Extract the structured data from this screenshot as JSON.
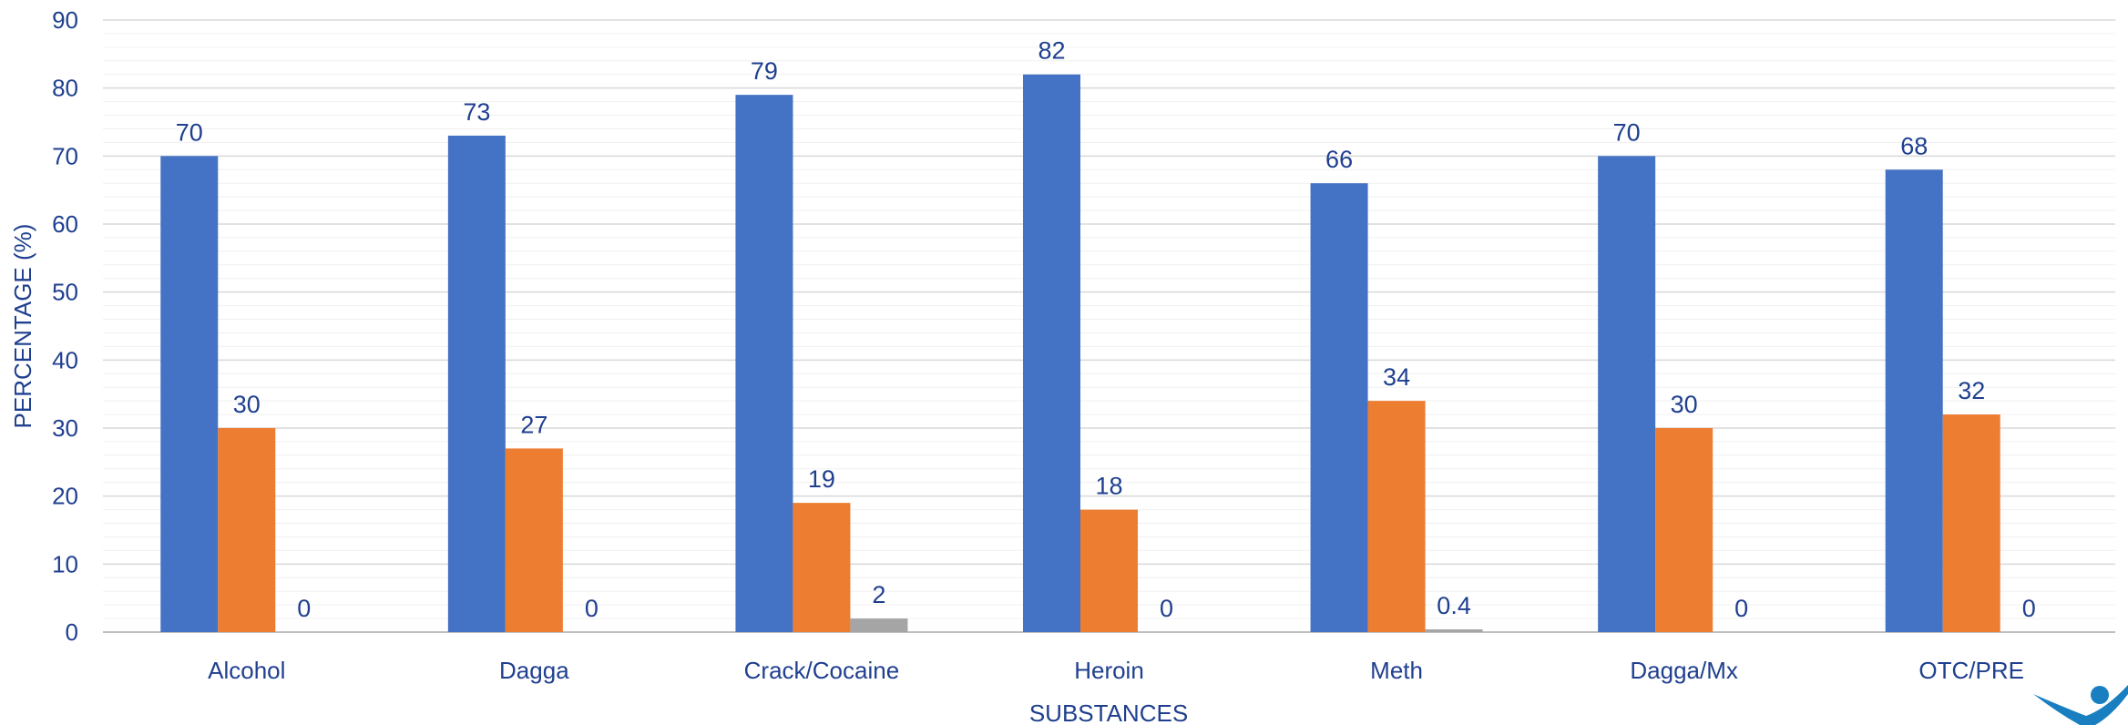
{
  "chart_data": {
    "type": "bar",
    "categories": [
      "Alcohol",
      "Dagga",
      "Crack/Cocaine",
      "Heroin",
      "Meth",
      "Dagga/Mx",
      "OTC/PRE"
    ],
    "series": [
      {
        "values": [
          70,
          73,
          79,
          82,
          66,
          70,
          68
        ],
        "value_labels": [
          "70",
          "73",
          "79",
          "82",
          "66",
          "70",
          "68"
        ],
        "color": "#4472c4"
      },
      {
        "values": [
          30,
          27,
          19,
          18,
          34,
          30,
          32
        ],
        "value_labels": [
          "30",
          "27",
          "19",
          "18",
          "34",
          "30",
          "32"
        ],
        "color": "#ed7d31"
      },
      {
        "values": [
          0,
          0,
          2,
          0,
          0.4,
          0,
          0
        ],
        "value_labels": [
          "0",
          "0",
          "2",
          "0",
          "0.4",
          "0",
          "0"
        ],
        "color": "#a5a5a5"
      }
    ],
    "xlabel": "SUBSTANCES",
    "ylabel": "PERCENTAGE (%)",
    "ylim": [
      0,
      90
    ],
    "yticks": [
      0,
      10,
      20,
      30,
      40,
      50,
      60,
      70,
      80,
      90
    ],
    "grid": true,
    "minor_grid": true,
    "legend": "none",
    "text_color": "#1f3f8f",
    "grid_color": "#d9d9d9",
    "logo_color": "#1a7fc1"
  }
}
